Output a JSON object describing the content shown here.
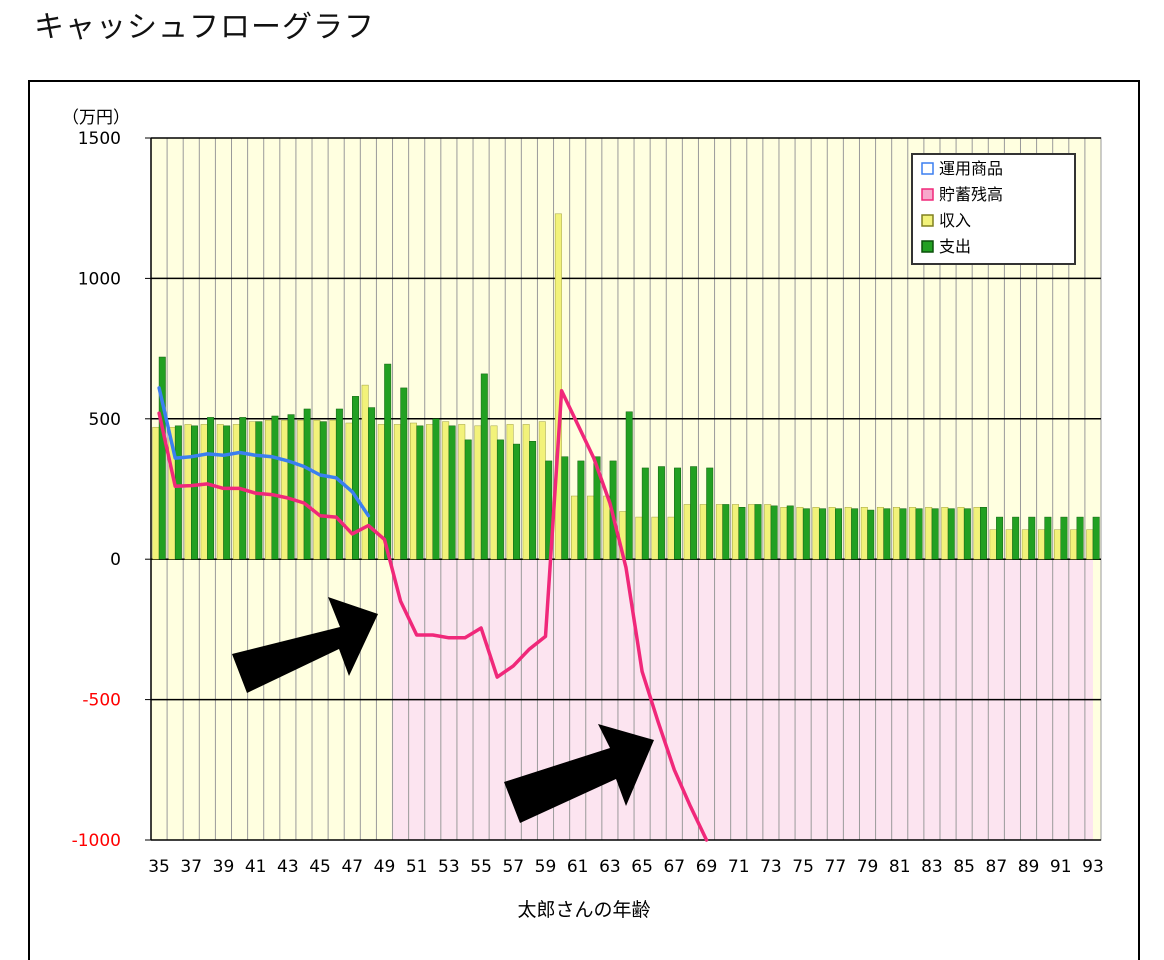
{
  "page_title": "キャッシュフローグラフ",
  "colors": {
    "plot_bg": "#ffffe0",
    "negative_fill": "#fce4f0",
    "income_bar": "#f2f27a",
    "expense_bar": "#22a022",
    "investment_line": "#3b7ff0",
    "savings_line": "#f0287a",
    "negative_tick": "#ff0000",
    "arrow": "#000000"
  },
  "chart_data": {
    "type": "bar",
    "unit_label": "（万円）",
    "xlabel": "太郎さんの年齢",
    "ylabel": "",
    "ylim": [
      -1000,
      1500
    ],
    "yticks": [
      "1500",
      "1000",
      "500",
      "0",
      "-500",
      "-1000"
    ],
    "grid": true,
    "legend_position": "top-right",
    "x": [
      35,
      36,
      37,
      38,
      39,
      40,
      41,
      42,
      43,
      44,
      45,
      46,
      47,
      48,
      49,
      50,
      51,
      52,
      53,
      54,
      55,
      56,
      57,
      58,
      59,
      60,
      61,
      62,
      63,
      64,
      65,
      66,
      67,
      68,
      69,
      70,
      71,
      72,
      73,
      74,
      75,
      76,
      77,
      78,
      79,
      80,
      81,
      82,
      83,
      84,
      85,
      86,
      87,
      88,
      89,
      90,
      91,
      92,
      93
    ],
    "xtick_labels": [
      "35",
      "37",
      "39",
      "41",
      "43",
      "45",
      "47",
      "49",
      "51",
      "53",
      "55",
      "57",
      "59",
      "61",
      "63",
      "65",
      "67",
      "69",
      "71",
      "73",
      "75",
      "77",
      "79",
      "81",
      "83",
      "85",
      "87",
      "89",
      "91",
      "93"
    ],
    "series": [
      {
        "name": "運用商品",
        "kind": "line",
        "values": [
          610,
          360,
          365,
          375,
          370,
          380,
          370,
          365,
          350,
          330,
          300,
          290,
          240,
          155,
          null,
          null,
          null,
          null,
          null,
          null,
          null,
          null,
          null,
          null,
          null,
          null,
          null,
          null,
          null,
          null,
          null,
          null,
          null,
          null,
          null,
          null,
          null,
          null,
          null,
          null,
          null,
          null,
          null,
          null,
          null,
          null,
          null,
          null,
          null,
          null,
          null,
          null,
          null,
          null,
          null,
          null,
          null,
          null,
          null
        ]
      },
      {
        "name": "貯蓄残高",
        "kind": "line",
        "values": [
          520,
          260,
          262,
          268,
          252,
          252,
          235,
          230,
          218,
          200,
          155,
          150,
          90,
          120,
          70,
          -150,
          -270,
          -270,
          -280,
          -280,
          -245,
          -420,
          -380,
          -320,
          -275,
          600,
          480,
          360,
          200,
          -30,
          -400,
          -580,
          -750,
          -880,
          -1010,
          null,
          null,
          null,
          null,
          null,
          null,
          null,
          null,
          null,
          null,
          null,
          null,
          null,
          null,
          null,
          null,
          null,
          null,
          null,
          null,
          null,
          null,
          null,
          null
        ]
      },
      {
        "name": "収入",
        "kind": "bar",
        "values": [
          470,
          470,
          480,
          480,
          480,
          480,
          490,
          495,
          495,
          495,
          495,
          495,
          485,
          620,
          480,
          480,
          485,
          480,
          490,
          480,
          475,
          475,
          480,
          480,
          490,
          1230,
          225,
          225,
          225,
          170,
          150,
          150,
          150,
          195,
          195,
          195,
          195,
          195,
          195,
          185,
          185,
          185,
          185,
          185,
          185,
          185,
          185,
          185,
          185,
          185,
          185,
          185,
          105,
          105,
          105,
          105,
          105,
          105,
          105
        ]
      },
      {
        "name": "支出",
        "kind": "bar",
        "values": [
          720,
          475,
          475,
          505,
          475,
          505,
          490,
          510,
          515,
          535,
          490,
          535,
          580,
          540,
          695,
          610,
          475,
          500,
          475,
          425,
          660,
          425,
          410,
          420,
          350,
          365,
          350,
          365,
          350,
          525,
          325,
          330,
          325,
          330,
          325,
          195,
          185,
          195,
          190,
          190,
          180,
          180,
          180,
          180,
          175,
          180,
          180,
          180,
          180,
          180,
          180,
          185,
          150,
          150,
          150,
          150,
          150,
          150,
          150
        ]
      }
    ]
  }
}
